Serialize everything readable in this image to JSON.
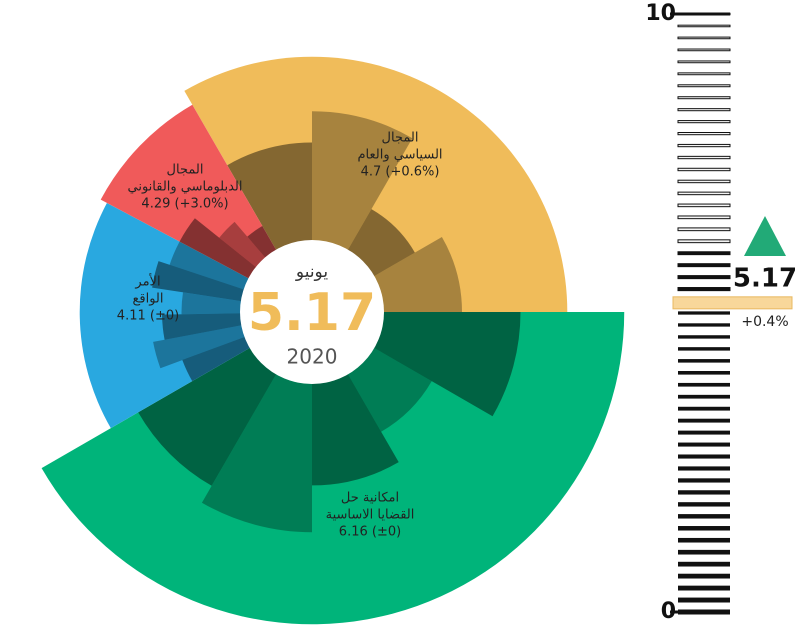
{
  "center": {
    "month": "يونيو",
    "value": 5.17,
    "year": "2020",
    "color": "#f0bc5a"
  },
  "sectors": [
    {
      "name_lines": [
        "المجال",
        "السياسي والعام"
      ],
      "value": 4.7,
      "value_label": "4.7 (+0.6%)",
      "color": "#f0bc5a",
      "sub_values": [
        2.5,
        3.3,
        1.2,
        2.0
      ]
    },
    {
      "name_lines": [
        "امكانية حل",
        "القضايا الاساسية"
      ],
      "value": 6.16,
      "value_label": "6.16 (±0)",
      "color": "#00b47a",
      "sub_values": [
        3.5,
        1.7,
        2.6,
        3.8,
        3.3
      ]
    },
    {
      "name_lines": [
        "الأمر",
        "الواقع"
      ],
      "value": 4.11,
      "value_label": "4.11 (±0)",
      "color": "#29a8e0",
      "sub_values": [
        1.7,
        2.3,
        2.0,
        1.5,
        2.3,
        2.0
      ]
    },
    {
      "name_lines": [
        "المجال",
        "الدبلوماسي والقانوني"
      ],
      "value": 4.29,
      "value_label": "4.29 (+3.0%)",
      "color": "#f05a5a",
      "sub_values": [
        2.0,
        1.2,
        0.7
      ]
    }
  ],
  "scale": {
    "ylim": [
      0,
      10
    ],
    "yticks": [
      0,
      10
    ]
  },
  "indicator": {
    "value": 5.17,
    "change": "+0.4%",
    "color": "#f8d79a"
  }
}
